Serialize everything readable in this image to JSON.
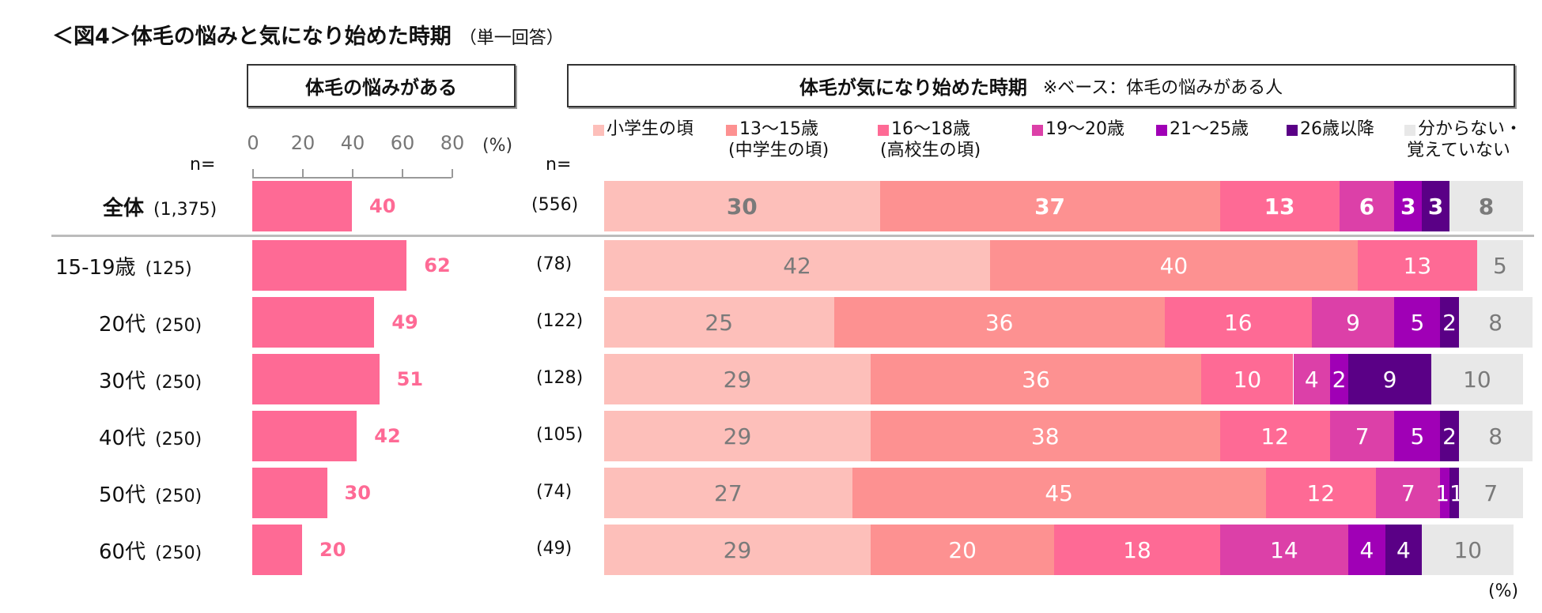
{
  "title": "＜図4＞体毛の悩みと気になり始めた時期",
  "title_note": "（単一回答）",
  "left_header": "体毛の悩みがある",
  "right_header": "体毛が気になり始めた時期",
  "right_header_note": "※ベース：体毛の悩みがある人",
  "n_label": "n=",
  "percent_unit": "(%)",
  "colors": {
    "left_bar": "#fe6a95",
    "categories": [
      "#fdbfba",
      "#fd9191",
      "#fe6a95",
      "#dc40a8",
      "#a000b6",
      "#5a0086",
      "#e8e8e8"
    ]
  },
  "chart_data": [
    {
      "type": "bar",
      "orientation": "horizontal",
      "xlim": [
        0,
        80
      ],
      "xticks": [
        "0",
        "20",
        "40",
        "60",
        "80"
      ],
      "xlabel": "(%)",
      "categories": [
        "全体",
        "15-19歳",
        "20代",
        "30代",
        "40代",
        "50代",
        "60代"
      ],
      "n": [
        "(1,375)",
        "(125)",
        "(250)",
        "(250)",
        "(250)",
        "(250)",
        "(250)"
      ],
      "values": [
        40,
        62,
        49,
        51,
        42,
        30,
        20
      ]
    },
    {
      "type": "bar",
      "orientation": "horizontal",
      "stacked": true,
      "unit": "(%)",
      "legend": "top",
      "categories": [
        "全体",
        "15-19歳",
        "20代",
        "30代",
        "40代",
        "50代",
        "60代"
      ],
      "n": [
        "(556)",
        "(78)",
        "(122)",
        "(128)",
        "(105)",
        "(74)",
        "(49)"
      ],
      "series": [
        {
          "name": "小学生の頃",
          "values": [
            30,
            42,
            25,
            29,
            29,
            27,
            29
          ]
        },
        {
          "name": "13～15歳（中学生の頃）",
          "line1": "13～15歳",
          "line2": "(中学生の頃)",
          "values": [
            37,
            40,
            36,
            36,
            38,
            45,
            20
          ]
        },
        {
          "name": "16～18歳（高校生の頃）",
          "line1": "16～18歳",
          "line2": "(高校生の頃)",
          "values": [
            13,
            13,
            16,
            10,
            12,
            12,
            18
          ]
        },
        {
          "name": "19～20歳",
          "values": [
            6,
            0,
            9,
            4,
            7,
            7,
            14
          ]
        },
        {
          "name": "21～25歳",
          "values": [
            3,
            0,
            5,
            2,
            5,
            1,
            4
          ]
        },
        {
          "name": "26歳以降",
          "values": [
            3,
            0,
            2,
            9,
            2,
            1,
            4
          ]
        },
        {
          "name": "分からない・覚えていない",
          "line1": "分からない・",
          "line2": "覚えていない",
          "values": [
            8,
            5,
            8,
            10,
            8,
            7,
            10
          ]
        }
      ]
    }
  ]
}
